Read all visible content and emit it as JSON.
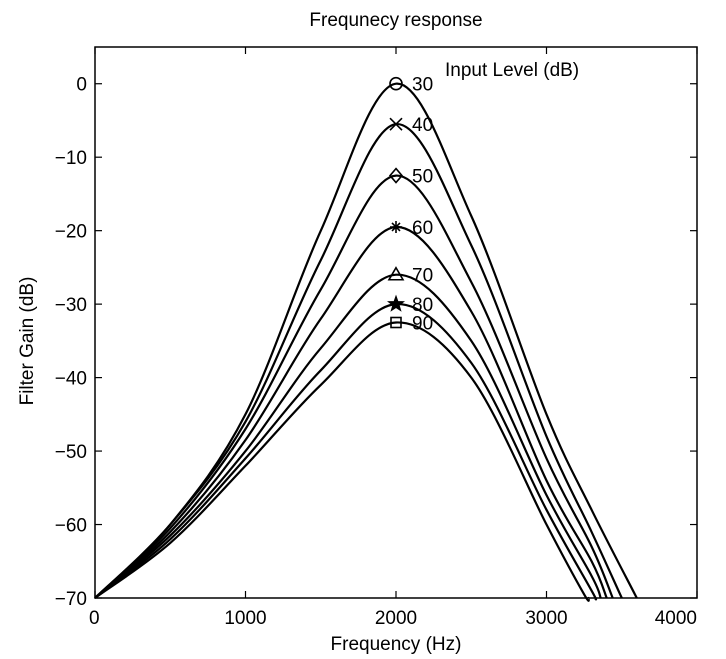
{
  "chart_data": {
    "type": "line",
    "title": "Frequnecy response",
    "xlabel": "Frequency (Hz)",
    "ylabel": "Filter Gain (dB)",
    "xlim": [
      0,
      4000
    ],
    "ylim": [
      -70,
      5
    ],
    "x_ticks": [
      0,
      1000,
      2000,
      3000,
      4000
    ],
    "y_ticks": [
      0,
      -10,
      -20,
      -30,
      -40,
      -50,
      -60,
      -70
    ],
    "x_tick_labels": [
      "0",
      "1000",
      "2000",
      "3000",
      "4000"
    ],
    "y_tick_labels": [
      "0",
      "−10",
      "−20",
      "−30",
      "−40",
      "−50",
      "−60",
      "−70"
    ],
    "grid": false,
    "legend_title": "Input Level (dB)",
    "peak_frequency": 2000,
    "start_value": -70,
    "series": [
      {
        "name": "30",
        "marker": "circle",
        "peak": 0,
        "x": [
          0,
          500,
          1000,
          1500,
          2000,
          2500,
          3000,
          3300,
          3600
        ],
        "y": [
          -70,
          -60,
          -45,
          -20,
          0,
          -18,
          -45,
          -58,
          -70
        ]
      },
      {
        "name": "40",
        "marker": "x",
        "peak": -5.5,
        "x": [
          0,
          500,
          1000,
          1500,
          2000,
          2500,
          3000,
          3300,
          3500
        ],
        "y": [
          -70,
          -60,
          -46,
          -24,
          -5.5,
          -22,
          -48,
          -61,
          -70
        ]
      },
      {
        "name": "50",
        "marker": "diamond",
        "peak": -12.5,
        "x": [
          0,
          500,
          1000,
          1500,
          2000,
          2500,
          3000,
          3300,
          3440
        ],
        "y": [
          -70,
          -60.5,
          -47,
          -28,
          -12.5,
          -27,
          -51,
          -63,
          -70
        ]
      },
      {
        "name": "60",
        "marker": "asterisk",
        "peak": -19.5,
        "x": [
          0,
          500,
          1000,
          1500,
          2000,
          2500,
          3000,
          3300,
          3400
        ],
        "y": [
          -70,
          -61,
          -48.5,
          -32,
          -19.5,
          -31,
          -54,
          -65,
          -70
        ]
      },
      {
        "name": "70",
        "marker": "triangle",
        "peak": -26,
        "x": [
          0,
          500,
          1000,
          1500,
          2000,
          2500,
          3000,
          3300,
          3360
        ],
        "y": [
          -70,
          -61.5,
          -50,
          -36,
          -26,
          -35,
          -56,
          -67,
          -70
        ]
      },
      {
        "name": "80",
        "marker": "star",
        "peak": -30,
        "x": [
          0,
          500,
          1000,
          1500,
          2000,
          2500,
          3000,
          3300,
          3320
        ],
        "y": [
          -70,
          -62,
          -51,
          -39,
          -30,
          -38,
          -58,
          -69,
          -70
        ]
      },
      {
        "name": "90",
        "marker": "square",
        "peak": -32.5,
        "x": [
          0,
          500,
          1000,
          1500,
          2000,
          2500,
          3000,
          3250,
          3280
        ],
        "y": [
          -70,
          -62.5,
          -52,
          -41,
          -32.5,
          -40,
          -60,
          -69.5,
          -70
        ]
      }
    ]
  }
}
